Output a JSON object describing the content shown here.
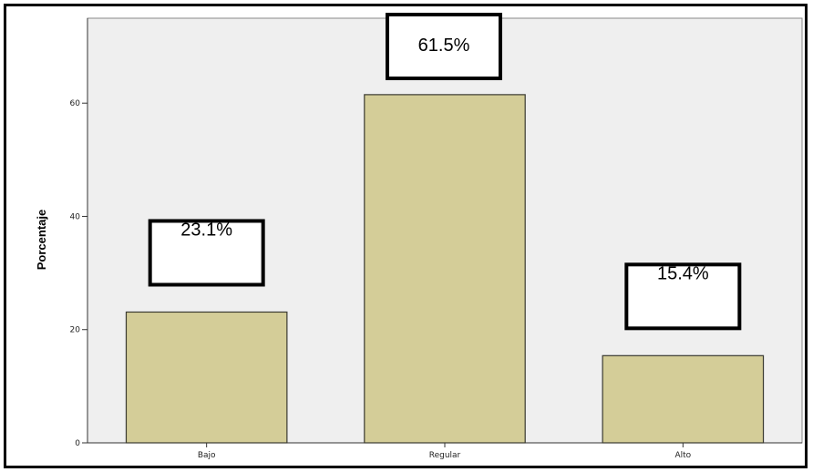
{
  "chart_data": {
    "type": "bar",
    "ylabel": "Porcentaje",
    "xlabel": "",
    "categories": [
      "Bajo",
      "Regular",
      "Alto"
    ],
    "values": [
      23.1,
      61.5,
      15.4
    ],
    "data_labels": [
      "23.1%",
      "61.5%",
      "15.4%"
    ],
    "ylim": [
      0,
      75
    ],
    "yticks": [
      0,
      20,
      40,
      60
    ],
    "ytick_labels": [
      "0",
      "20",
      "40",
      "60"
    ],
    "grid": false,
    "colors": {
      "bar_fill": "#d4cd98",
      "bar_stroke": "#3a3a30",
      "plot_background": "#efefef",
      "frame": "#000000"
    }
  }
}
